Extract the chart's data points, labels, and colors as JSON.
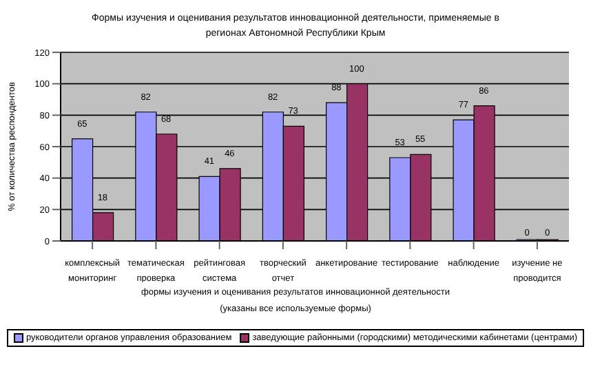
{
  "chart_data": {
    "type": "bar",
    "title": "Формы изучения и оценивания результатов инновационной деятельности, применяемые в регионах Автономной  Республики Крым",
    "categories": [
      "комплексный\nмониторинг",
      "тематическая\nпроверка",
      "рейтинговая\nсистема",
      "творческий\nотчет",
      "анкетирование",
      "тестирование",
      "наблюдение",
      "изучение не\nпроводится"
    ],
    "series": [
      {
        "name": "руководители органов управления образованием",
        "color": "#9999ff",
        "values": [
          65,
          82,
          41,
          82,
          88,
          53,
          77,
          0
        ]
      },
      {
        "name": "заведующие районными (городскими) методическими кабинетами (центрами)",
        "color": "#993366",
        "values": [
          18,
          68,
          46,
          73,
          100,
          55,
          86,
          0
        ]
      }
    ],
    "xlabel": "формы изучения и оценивания результатов инновационной деятельности\n(указаны все используемые формы)",
    "ylabel": "% от количества респондентов",
    "ylim": [
      0,
      120
    ],
    "yticks": [
      0,
      20,
      40,
      60,
      80,
      100,
      120
    ],
    "grid": "y",
    "legend": "bottom",
    "data_labels": true
  }
}
